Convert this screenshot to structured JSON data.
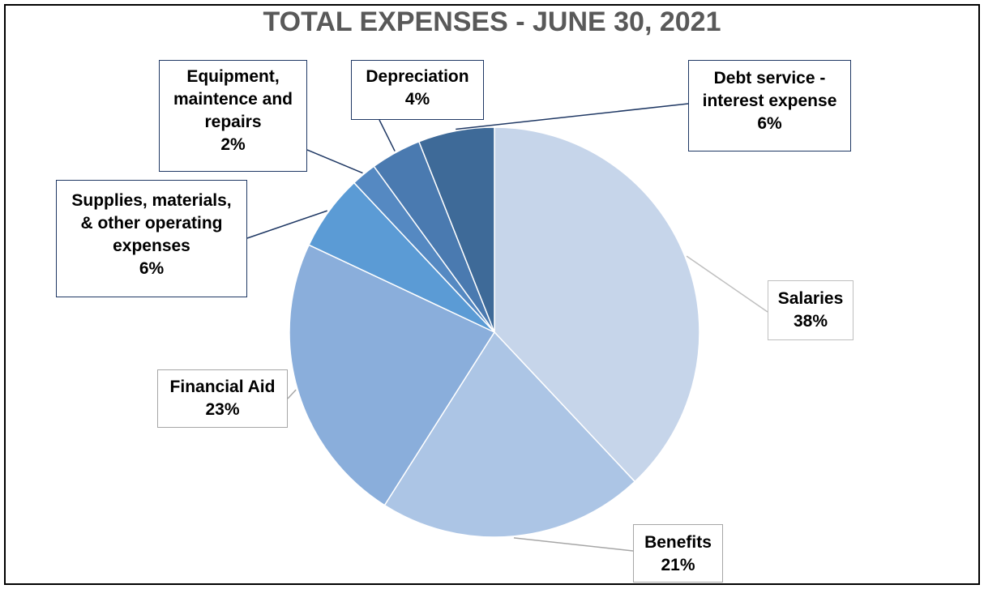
{
  "chart_data": {
    "type": "pie",
    "title": "TOTAL EXPENSES - JUNE 30, 2021",
    "slices": [
      {
        "label": "Salaries",
        "value": 38,
        "percent_label": "38%",
        "color": "#C6D5EA"
      },
      {
        "label": "Benefits",
        "value": 21,
        "percent_label": "21%",
        "color": "#ACC5E5"
      },
      {
        "label": "Financial Aid",
        "value": 23,
        "percent_label": "23%",
        "color": "#8AAEDB"
      },
      {
        "label": "Supplies, materials, & other operating expenses",
        "value": 6,
        "percent_label": "6%",
        "color": "#5B9BD5"
      },
      {
        "label": "Equipment, maintence and repairs",
        "value": 2,
        "percent_label": "2%",
        "color": "#5589C2"
      },
      {
        "label": "Depreciation",
        "value": 4,
        "percent_label": "4%",
        "color": "#4A7AB0"
      },
      {
        "label": "Debt service - interest expense",
        "value": 6,
        "percent_label": "6%",
        "color": "#3E6A98"
      }
    ],
    "label_border_colors": {
      "light": "#BFBFBF",
      "dark": "#1F3864"
    }
  }
}
